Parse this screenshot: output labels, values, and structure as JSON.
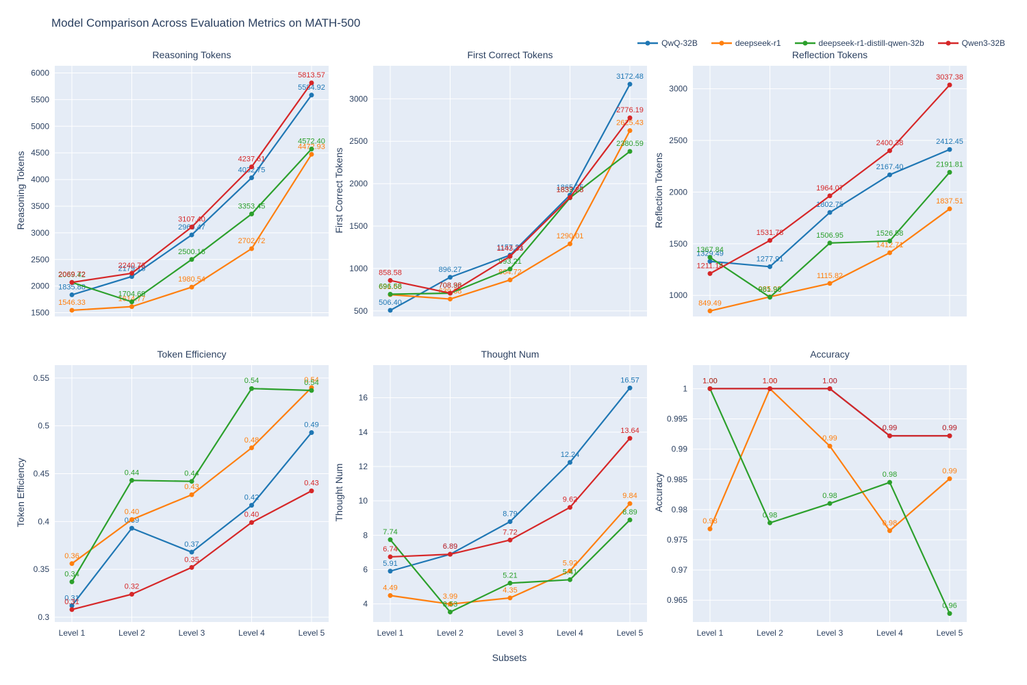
{
  "page": {
    "title": "Model Comparison Across Evaluation Metrics on MATH-500",
    "xlabel": "Subsets"
  },
  "colors": {
    "plot_background": "#e5ecf6",
    "gridline": "#ffffff",
    "text": "#2a3f5f"
  },
  "legend": [
    {
      "label": "QwQ-32B",
      "color": "#1f77b4"
    },
    {
      "label": "deepseek-r1",
      "color": "#ff7f0e"
    },
    {
      "label": "deepseek-r1-distill-qwen-32b",
      "color": "#2ca02c"
    },
    {
      "label": "Qwen3-32B",
      "color": "#d62728"
    }
  ],
  "categories": [
    "Level 1",
    "Level 2",
    "Level 3",
    "Level 4",
    "Level 5"
  ],
  "chart_data": [
    {
      "type": "line",
      "title": "Reasoning Tokens",
      "ylabel": "Reasoning Tokens",
      "row": 0,
      "col": 0,
      "ylim": [
        1430,
        6135
      ],
      "ytick_vals": [
        1500,
        2000,
        2500,
        3000,
        3500,
        4000,
        4500,
        5000,
        5500,
        6000
      ],
      "ytick_labels": [
        "1500",
        "2000",
        "2500",
        "3000",
        "3500",
        "4000",
        "4500",
        "5000",
        "5500",
        "6000"
      ],
      "show_x_labels": false,
      "series": [
        {
          "name": "QwQ-32B",
          "values": [
            1835.88,
            2179.18,
            2960.47,
            4032.75,
            5584.92
          ]
        },
        {
          "name": "deepseek-r1",
          "values": [
            1546.33,
            1614.77,
            1980.54,
            2702.72,
            4472.93
          ]
        },
        {
          "name": "deepseek-r1-distill-qwen-32b",
          "values": [
            2069.42,
            1704.69,
            2500.16,
            3353.45,
            4572.4
          ]
        },
        {
          "name": "Qwen3-32B",
          "values": [
            2069.72,
            2240.73,
            3107.4,
            4237.61,
            5813.57
          ]
        }
      ]
    },
    {
      "type": "line",
      "title": "First Correct Tokens",
      "ylabel": "First Correct Tokens",
      "row": 0,
      "col": 1,
      "ylim": [
        434,
        3390
      ],
      "ytick_vals": [
        500,
        1000,
        1500,
        2000,
        2500,
        3000
      ],
      "ytick_labels": [
        "500",
        "1000",
        "1500",
        "2000",
        "2500",
        "3000"
      ],
      "show_x_labels": false,
      "series": [
        {
          "name": "QwQ-32B",
          "values": [
            506.4,
            896.27,
            1157.31,
            1865.35,
            3172.48
          ]
        },
        {
          "name": "deepseek-r1",
          "values": [
            691.68,
            639.38,
            864.72,
            1290.01,
            2625.43
          ]
        },
        {
          "name": "deepseek-r1-distill-qwen-32b",
          "values": [
            696.58,
            708.38,
            993.21,
            1833.28,
            2380.59
          ]
        },
        {
          "name": "Qwen3-32B",
          "values": [
            858.58,
            708.96,
            1143.33,
            1837.23,
            2776.19
          ]
        }
      ]
    },
    {
      "type": "line",
      "title": "Reflection Tokens",
      "ylabel": "Reflection Tokens",
      "row": 0,
      "col": 2,
      "ylim": [
        796,
        3223
      ],
      "ytick_vals": [
        1000,
        1500,
        2000,
        2500,
        3000
      ],
      "ytick_labels": [
        "1000",
        "1500",
        "2000",
        "2500",
        "3000"
      ],
      "show_x_labels": false,
      "series": [
        {
          "name": "QwQ-32B",
          "values": [
            1329.49,
            1277.91,
            1802.75,
            2167.4,
            2412.45
          ]
        },
        {
          "name": "deepseek-r1",
          "values": [
            849.49,
            985.98,
            1115.82,
            1412.71,
            1837.51
          ]
        },
        {
          "name": "deepseek-r1-distill-qwen-32b",
          "values": [
            1367.84,
            981.96,
            1506.95,
            1526.58,
            2191.81
          ]
        },
        {
          "name": "Qwen3-32B",
          "values": [
            1211.14,
            1531.78,
            1964.07,
            2400.38,
            3037.38
          ]
        }
      ]
    },
    {
      "type": "line",
      "title": "Token Efficiency",
      "ylabel": "Token Efficiency",
      "row": 1,
      "col": 0,
      "ylim": [
        0.295,
        0.5635
      ],
      "ytick_vals": [
        0.3,
        0.35,
        0.4,
        0.45,
        0.5,
        0.55
      ],
      "ytick_labels": [
        "0.3",
        "0.35",
        "0.4",
        "0.45",
        "0.5",
        "0.55"
      ],
      "show_x_labels": true,
      "series": [
        {
          "name": "QwQ-32B",
          "values": [
            0.312,
            0.393,
            0.368,
            0.417,
            0.493
          ]
        },
        {
          "name": "deepseek-r1",
          "values": [
            0.356,
            0.402,
            0.428,
            0.477,
            0.54
          ]
        },
        {
          "name": "deepseek-r1-distill-qwen-32b",
          "values": [
            0.337,
            0.443,
            0.442,
            0.539,
            0.537
          ]
        },
        {
          "name": "Qwen3-32B",
          "values": [
            0.308,
            0.324,
            0.352,
            0.399,
            0.432
          ]
        }
      ]
    },
    {
      "type": "line",
      "title": "Thought Num",
      "ylabel": "Thought Num",
      "row": 1,
      "col": 1,
      "ylim": [
        2.95,
        17.9
      ],
      "ytick_vals": [
        4,
        6,
        8,
        10,
        12,
        14,
        16
      ],
      "ytick_labels": [
        "4",
        "6",
        "8",
        "10",
        "12",
        "14",
        "16"
      ],
      "show_x_labels": true,
      "series": [
        {
          "name": "QwQ-32B",
          "values": [
            5.91,
            6.89,
            8.79,
            12.24,
            16.57
          ]
        },
        {
          "name": "deepseek-r1",
          "values": [
            4.49,
            3.99,
            4.35,
            5.92,
            9.84
          ]
        },
        {
          "name": "deepseek-r1-distill-qwen-32b",
          "values": [
            7.74,
            3.53,
            5.21,
            5.41,
            8.89
          ]
        },
        {
          "name": "Qwen3-32B",
          "values": [
            6.74,
            6.89,
            7.72,
            9.62,
            13.64
          ]
        }
      ]
    },
    {
      "type": "line",
      "title": "Accuracy",
      "ylabel": "Accuracy",
      "row": 1,
      "col": 2,
      "ylim": [
        0.9614,
        1.0039
      ],
      "ytick_vals": [
        0.965,
        0.97,
        0.975,
        0.98,
        0.985,
        0.99,
        0.995,
        1
      ],
      "ytick_labels": [
        "0.965",
        "0.97",
        "0.975",
        "0.98",
        "0.985",
        "0.99",
        "0.995",
        "1"
      ],
      "show_x_labels": true,
      "series": [
        {
          "name": "QwQ-32B",
          "values": [
            1.0,
            1.0,
            1.0,
            0.9922,
            0.9922
          ]
        },
        {
          "name": "deepseek-r1",
          "values": [
            0.9768,
            1.0,
            0.9905,
            0.9765,
            0.9851
          ]
        },
        {
          "name": "deepseek-r1-distill-qwen-32b",
          "values": [
            1.0,
            0.9778,
            0.981,
            0.9845,
            0.9628
          ]
        },
        {
          "name": "Qwen3-32B",
          "values": [
            1.0,
            1.0,
            1.0,
            0.9922,
            0.9922
          ]
        }
      ]
    }
  ]
}
